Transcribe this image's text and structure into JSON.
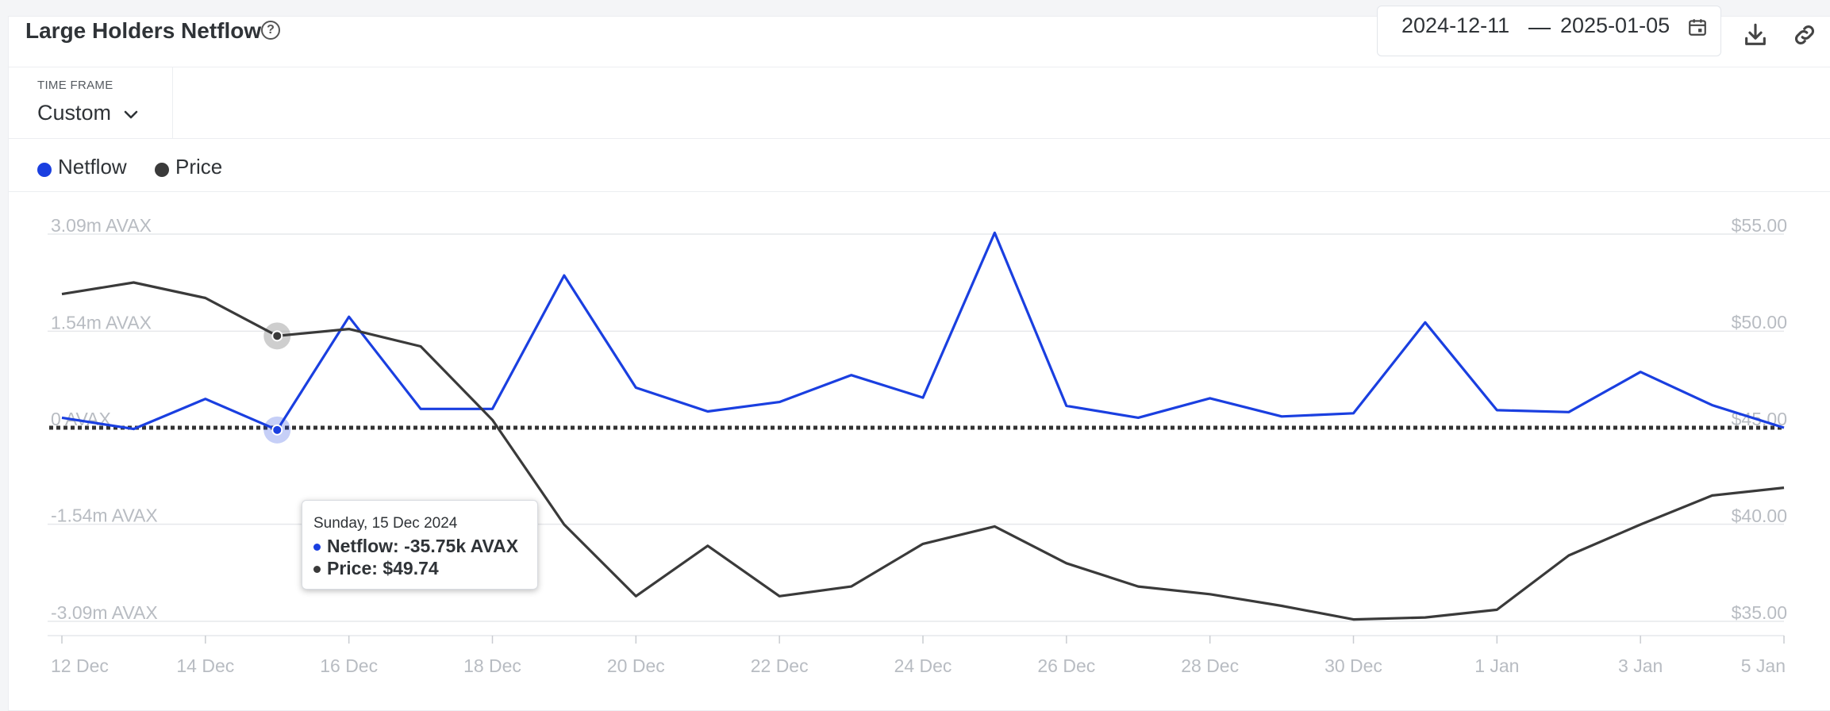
{
  "header": {
    "title": "Large Holders Netflow",
    "date_start": "2024-12-11",
    "date_end": "2025-01-05"
  },
  "timeframe": {
    "label": "TIME FRAME",
    "value": "Custom"
  },
  "legend": {
    "netflow_label": "Netflow",
    "price_label": "Price"
  },
  "colors": {
    "netflow": "#1a3fe0",
    "price": "#3a3a3a",
    "grid": "#e6e8eb",
    "axis_text": "#b8bcc2"
  },
  "icons": {
    "help": "help-circle-icon",
    "calendar": "calendar-icon",
    "download": "download-icon",
    "link": "link-icon",
    "chevron": "chevron-down-icon"
  },
  "tooltip": {
    "date": "Sunday, 15 Dec 2024",
    "netflow_text": "Netflow: -35.75k AVAX",
    "price_text": "Price: $49.74"
  },
  "chart_data": {
    "type": "line",
    "x": [
      "2024-12-12",
      "2024-12-13",
      "2024-12-14",
      "2024-12-15",
      "2024-12-16",
      "2024-12-17",
      "2024-12-18",
      "2024-12-19",
      "2024-12-20",
      "2024-12-21",
      "2024-12-22",
      "2024-12-23",
      "2024-12-24",
      "2024-12-25",
      "2024-12-26",
      "2024-12-27",
      "2024-12-28",
      "2024-12-29",
      "2024-12-30",
      "2024-12-31",
      "2025-01-01",
      "2025-01-02",
      "2025-01-03",
      "2025-01-04",
      "2025-01-05"
    ],
    "x_tick_labels": [
      "12 Dec",
      "14 Dec",
      "16 Dec",
      "18 Dec",
      "20 Dec",
      "22 Dec",
      "24 Dec",
      "26 Dec",
      "28 Dec",
      "30 Dec",
      "1 Jan",
      "3 Jan",
      "5 Jan"
    ],
    "series": [
      {
        "name": "Netflow",
        "axis": "left",
        "unit": "AVAX",
        "values": [
          160000,
          -20000,
          460000,
          -35750,
          1770000,
          300000,
          300000,
          2430000,
          640000,
          260000,
          410000,
          840000,
          480000,
          3110000,
          350000,
          160000,
          470000,
          180000,
          230000,
          1680000,
          280000,
          250000,
          890000,
          360000,
          0
        ]
      },
      {
        "name": "Price",
        "axis": "right",
        "unit": "USD",
        "values": [
          51.9,
          52.5,
          51.7,
          49.74,
          50.1,
          49.2,
          45.4,
          40.0,
          36.3,
          38.9,
          36.3,
          36.8,
          39.0,
          39.9,
          38.0,
          36.8,
          36.4,
          35.8,
          35.1,
          35.2,
          35.6,
          38.4,
          40.0,
          41.5,
          41.9
        ]
      }
    ],
    "y_left": {
      "ticks": [
        3090000,
        1540000,
        0,
        -1540000,
        -3090000
      ],
      "tick_labels": [
        "3.09m AVAX",
        "1.54m AVAX",
        "0 AVAX",
        "-1.54m AVAX",
        "-3.09m AVAX"
      ],
      "ylim": [
        -3090000,
        3090000
      ]
    },
    "y_right": {
      "ticks": [
        55,
        50,
        45,
        40,
        35
      ],
      "tick_labels": [
        "$55.00",
        "$50.00",
        "$45.00",
        "$40.00",
        "$35.00"
      ],
      "ylim": [
        35,
        55
      ]
    },
    "zero_line": "dotted",
    "highlight_index": 3,
    "grid": true,
    "legend_position": "top-left"
  }
}
